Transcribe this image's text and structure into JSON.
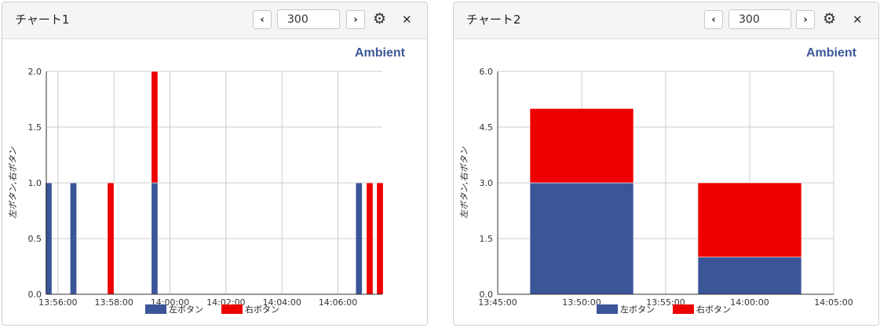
{
  "colors": {
    "left": "#3b5599",
    "right": "#ee0000",
    "brand": "#3b5998"
  },
  "cards": [
    {
      "title": "チャート1",
      "period": "300",
      "brand": "Ambient",
      "icons": {
        "prev": "chevron-left-icon",
        "next": "chevron-right-icon",
        "settings": "gear-icon",
        "close": "close-icon"
      },
      "chart_data": {
        "type": "bar",
        "stacked": true,
        "ylabel": "左ボタン,右ボタン",
        "ylim": [
          0,
          2
        ],
        "yticks": [
          "0.0",
          "0.5",
          "1.0",
          "1.5",
          "2.0"
        ],
        "xlim": [
          "13:55:35",
          "14:07:35"
        ],
        "xticks": [
          "13:56:00",
          "13:58:00",
          "14:00:00",
          "14:02:00",
          "14:04:00",
          "14:06:00"
        ],
        "bar_width_seconds": 14,
        "x": [
          "13:55:40",
          "13:56:33",
          "13:57:53",
          "13:59:27",
          "14:06:45",
          "14:07:08",
          "14:07:30"
        ],
        "series": [
          {
            "name": "左ボタン",
            "values": [
              1,
              1,
              0,
              1,
              1,
              0,
              0
            ]
          },
          {
            "name": "右ボタン",
            "values": [
              0,
              0,
              1,
              1,
              0,
              1,
              1
            ]
          }
        ],
        "legend": "bottom"
      }
    },
    {
      "title": "チャート2",
      "period": "300",
      "brand": "Ambient",
      "icons": {
        "prev": "chevron-left-icon",
        "next": "chevron-right-icon",
        "settings": "gear-icon",
        "close": "close-icon"
      },
      "chart_data": {
        "type": "bar",
        "stacked": true,
        "ylabel": "左ボタン,右ボタン",
        "ylim": [
          0,
          6
        ],
        "yticks": [
          "0.0",
          "1.5",
          "3.0",
          "4.5",
          "6.0"
        ],
        "xlim": [
          "13:45:00",
          "14:05:00"
        ],
        "xticks": [
          "13:45:00",
          "13:50:00",
          "13:55:00",
          "14:00:00",
          "14:05:00"
        ],
        "bar_width_seconds": 370,
        "x": [
          "13:50:00",
          "14:00:00"
        ],
        "series": [
          {
            "name": "左ボタン",
            "values": [
              3,
              1
            ]
          },
          {
            "name": "右ボタン",
            "values": [
              2,
              2
            ]
          }
        ],
        "legend": "bottom"
      }
    }
  ]
}
